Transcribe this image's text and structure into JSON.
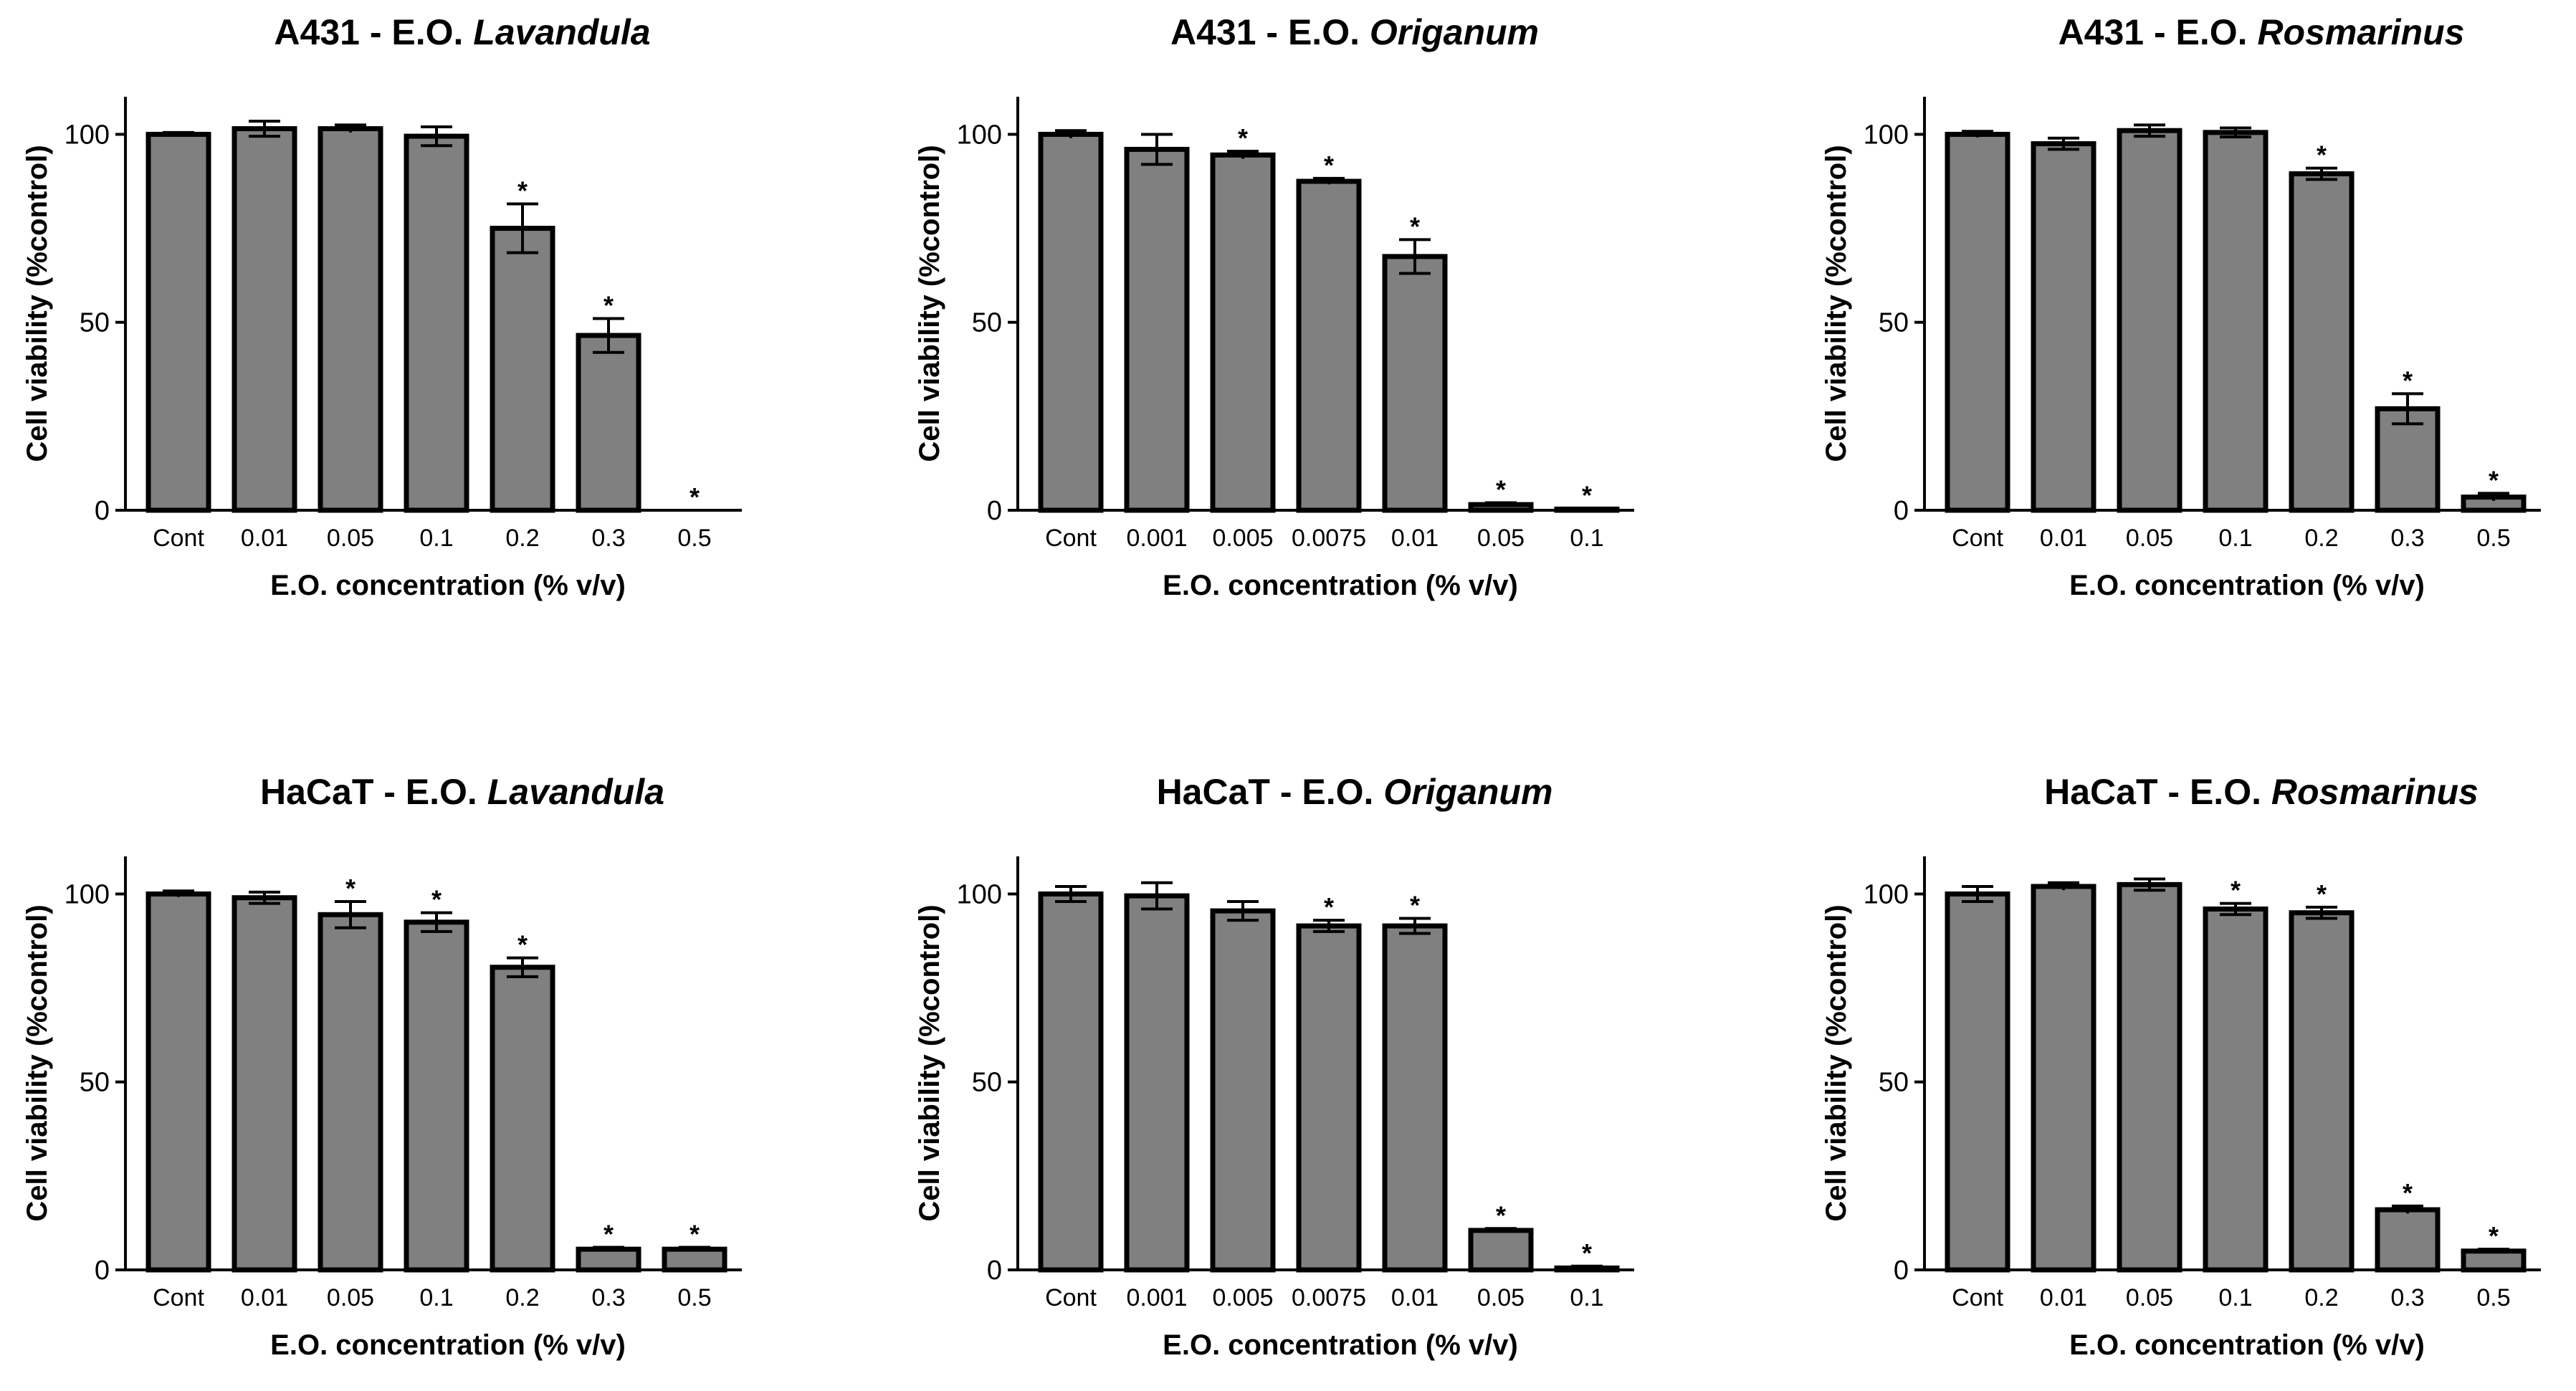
{
  "chart_data": [
    {
      "type": "bar",
      "title": {
        "prefix": "A431 - E.O. ",
        "species": "Lavandula"
      },
      "xlabel": "E.O. concentration (% v/v)",
      "ylabel": "Cell viability (%control)",
      "ylim": [
        0,
        110
      ],
      "yticks": [
        "0",
        "50",
        "100"
      ],
      "categories": [
        "Cont",
        "0.01",
        "0.05",
        "0.1",
        "0.2",
        "0.3",
        "0.5"
      ],
      "values": [
        100,
        101.5,
        101.5,
        99.5,
        75,
        46.5,
        0
      ],
      "errors": [
        0.5,
        2,
        1,
        2.5,
        6.5,
        4.5,
        0
      ],
      "significant": [
        false,
        false,
        false,
        false,
        true,
        true,
        true
      ],
      "star_label": "*"
    },
    {
      "type": "bar",
      "title": {
        "prefix": "A431 - E.O. ",
        "species": "Origanum"
      },
      "xlabel": "E.O. concentration (% v/v)",
      "ylabel": "Cell viability (%control)",
      "ylim": [
        0,
        110
      ],
      "yticks": [
        "0",
        "50",
        "100"
      ],
      "categories": [
        "Cont",
        "0.001",
        "0.005",
        "0.0075",
        "0.01",
        "0.05",
        "0.1"
      ],
      "values": [
        100,
        96,
        94.5,
        87.5,
        67.5,
        1.5,
        0.3
      ],
      "errors": [
        1,
        4,
        1,
        0.8,
        4.5,
        0.5,
        0.2
      ],
      "significant": [
        false,
        false,
        true,
        true,
        true,
        true,
        true
      ],
      "star_label": "*"
    },
    {
      "type": "bar",
      "title": {
        "prefix": "A431 - E.O. ",
        "species": "Rosmarinus"
      },
      "xlabel": "E.O. concentration (% v/v)",
      "ylabel": "Cell viability (%control)",
      "ylim": [
        0,
        110
      ],
      "yticks": [
        "0",
        "50",
        "100"
      ],
      "categories": [
        "Cont",
        "0.01",
        "0.05",
        "0.1",
        "0.2",
        "0.3",
        "0.5"
      ],
      "values": [
        100,
        97.5,
        101,
        100.5,
        89.5,
        27,
        3.5
      ],
      "errors": [
        0.8,
        1.5,
        1.5,
        1.2,
        1.5,
        4,
        1
      ],
      "significant": [
        false,
        false,
        false,
        false,
        true,
        true,
        true
      ],
      "star_label": "*"
    },
    {
      "type": "bar",
      "title": {
        "prefix": "HaCaT - E.O. ",
        "species": "Lavandula"
      },
      "xlabel": "E.O. concentration (% v/v)",
      "ylabel": "Cell viability (%control)",
      "ylim": [
        0,
        110
      ],
      "yticks": [
        "0",
        "50",
        "100"
      ],
      "categories": [
        "Cont",
        "0.01",
        "0.05",
        "0.1",
        "0.2",
        "0.3",
        "0.5"
      ],
      "values": [
        100,
        99,
        94.5,
        92.5,
        80.5,
        5.5,
        5.5
      ],
      "errors": [
        0.8,
        1.5,
        3.5,
        2.5,
        2.5,
        0.5,
        0.5
      ],
      "significant": [
        false,
        false,
        true,
        true,
        true,
        true,
        true
      ],
      "star_label": "*"
    },
    {
      "type": "bar",
      "title": {
        "prefix": "HaCaT - E.O. ",
        "species": "Origanum"
      },
      "xlabel": "E.O. concentration (% v/v)",
      "ylabel": "Cell viability (%control)",
      "ylim": [
        0,
        110
      ],
      "yticks": [
        "0",
        "50",
        "100"
      ],
      "categories": [
        "Cont",
        "0.001",
        "0.005",
        "0.0075",
        "0.01",
        "0.05",
        "0.1"
      ],
      "values": [
        100,
        99.5,
        95.5,
        91.5,
        91.5,
        10.5,
        0.5
      ],
      "errors": [
        2,
        3.5,
        2.5,
        1.5,
        2,
        0.5,
        0.5
      ],
      "significant": [
        false,
        false,
        false,
        true,
        true,
        true,
        true
      ],
      "star_label": "*"
    },
    {
      "type": "bar",
      "title": {
        "prefix": "HaCaT - E.O. ",
        "species": "Rosmarinus"
      },
      "xlabel": "E.O. concentration (% v/v)",
      "ylabel": "Cell viability (%control)",
      "ylim": [
        0,
        110
      ],
      "yticks": [
        "0",
        "50",
        "100"
      ],
      "categories": [
        "Cont",
        "0.01",
        "0.05",
        "0.1",
        "0.2",
        "0.3",
        "0.5"
      ],
      "values": [
        100,
        102,
        102.5,
        96,
        95,
        16,
        5
      ],
      "errors": [
        2,
        1,
        1.5,
        1.5,
        1.5,
        1,
        0.5
      ],
      "significant": [
        false,
        false,
        false,
        true,
        true,
        true,
        true
      ],
      "star_label": "*"
    }
  ]
}
